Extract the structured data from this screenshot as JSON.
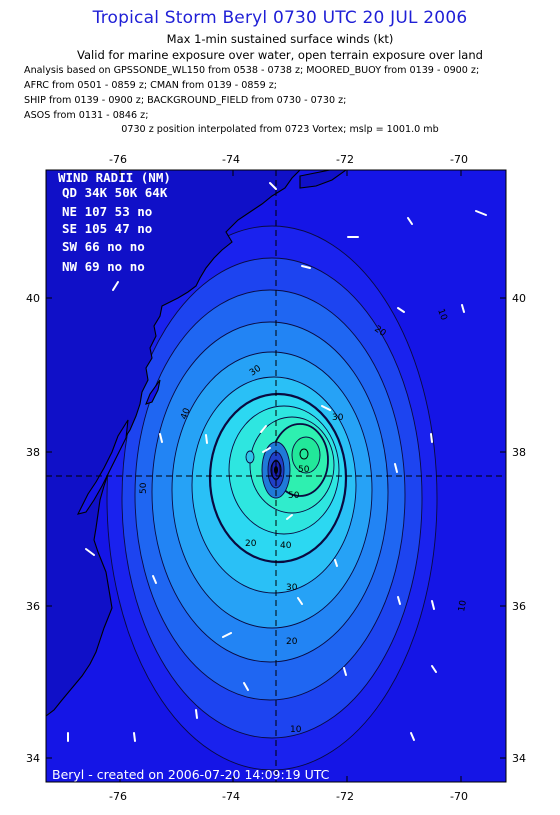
{
  "header": {
    "title": "Tropical Storm Beryl 0730 UTC 20 JUL 2006",
    "subtitle": "Max 1-min sustained surface winds (kt)",
    "valid": "Valid for marine exposure over water, open terrain exposure over land",
    "analysis_lines": [
      "Analysis based on  GPSSONDE_WL150 from 0538 - 0738 z;  MOORED_BUOY from 0139 - 0900 z;",
      "AFRC from 0501 - 0859 z;  CMAN from 0139 - 0859 z;",
      "SHIP from 0139 - 0900 z;  BACKGROUND_FIELD from 0730 - 0730 z;",
      "ASOS from 0131 - 0846 z;"
    ],
    "position_line": "0730 z position interpolated from 0723 Vortex; mslp = 1001.0 mb"
  },
  "map": {
    "lon_ticks": [
      "-76",
      "-74",
      "-72",
      "-70"
    ],
    "lat_ticks": [
      "40",
      "38",
      "36",
      "34"
    ],
    "storm_center": {
      "lon": -73.1,
      "lat": 37.7
    },
    "contour_labels": [
      "10",
      "20",
      "30",
      "40",
      "50",
      "10",
      "20",
      "30",
      "40",
      "50",
      "10",
      "20",
      "30",
      "50"
    ],
    "colors": {
      "ocean": "#1515e6",
      "land": "#1010c8",
      "inner": "#22e89a"
    }
  },
  "wind_radii": {
    "title": "WIND RADII (NM)",
    "header": "QD 34K 50K 64K",
    "rows": [
      "NE 107  53  no",
      "SE 105  47  no",
      "SW  66  no  no",
      "NW  69  no  no"
    ]
  },
  "credit": "Beryl - created on 2006-07-20 14:09:19 UTC"
}
